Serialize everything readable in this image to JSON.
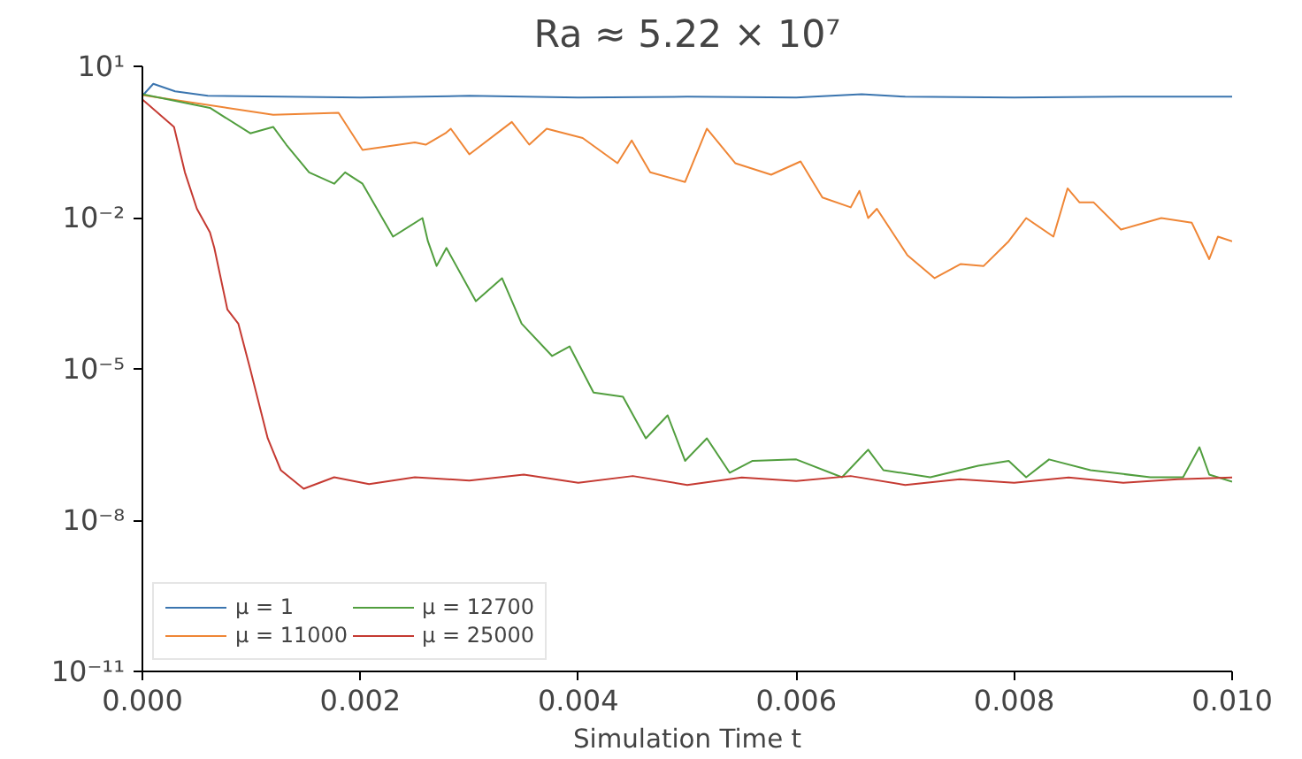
{
  "chart_data": {
    "type": "line",
    "title": "Ra ≈ 5.22 × 10⁷",
    "xlabel": "Simulation Time t",
    "xlim": [
      0,
      0.01
    ],
    "ylim": [
      1e-11,
      10
    ],
    "log": "y",
    "grid": false,
    "legend": "bottom left",
    "marker": "none",
    "line_style": "solid",
    "xticks": [
      {
        "value": 0,
        "label": "0.000"
      },
      {
        "value": 0.002,
        "label": "0.002"
      },
      {
        "value": 0.004,
        "label": "0.004"
      },
      {
        "value": 0.006,
        "label": "0.006"
      },
      {
        "value": 0.008,
        "label": "0.008"
      },
      {
        "value": 0.01,
        "label": "0.010"
      }
    ],
    "yticks": [
      {
        "value": 1e-11,
        "label": "10⁻¹¹"
      },
      {
        "value": 1e-08,
        "label": "10⁻⁸"
      },
      {
        "value": 1e-05,
        "label": "10⁻⁵"
      },
      {
        "value": 0.01,
        "label": "10⁻²"
      },
      {
        "value": 10,
        "label": "10¹"
      }
    ],
    "series": [
      {
        "name": "μ = 1",
        "color": "#3b75af",
        "x": [
          0,
          0.0001,
          0.0003,
          0.0006,
          0.002,
          0.003,
          0.004,
          0.005,
          0.006,
          0.0066,
          0.007,
          0.008,
          0.009,
          0.01
        ],
        "values": [
          2.6,
          4.5,
          3.2,
          2.6,
          2.4,
          2.6,
          2.4,
          2.5,
          2.4,
          2.8,
          2.5,
          2.4,
          2.5,
          2.5
        ]
      },
      {
        "name": "μ = 11000",
        "color": "#ef8636",
        "x": [
          0,
          0.00078,
          0.0012,
          0.0018,
          0.00202,
          0.0025,
          0.0026,
          0.00278,
          0.00283,
          0.003,
          0.00339,
          0.00355,
          0.00371,
          0.00404,
          0.00436,
          0.00449,
          0.00466,
          0.00498,
          0.00518,
          0.00544,
          0.00577,
          0.00604,
          0.00624,
          0.0065,
          0.00658,
          0.00666,
          0.00674,
          0.00702,
          0.00727,
          0.00751,
          0.00772,
          0.00795,
          0.00811,
          0.00836,
          0.00849,
          0.0086,
          0.00873,
          0.00898,
          0.00935,
          0.00963,
          0.00979,
          0.00987,
          0.01
        ],
        "values": [
          2.7,
          1.5,
          1.1,
          1.2,
          0.22,
          0.31,
          0.28,
          0.47,
          0.58,
          0.18,
          0.79,
          0.28,
          0.58,
          0.38,
          0.12,
          0.34,
          0.079,
          0.051,
          0.58,
          0.12,
          0.071,
          0.13,
          0.025,
          0.016,
          0.034,
          0.0098,
          0.015,
          0.0018,
          0.00063,
          0.0012,
          0.0011,
          0.0034,
          0.0098,
          0.0042,
          0.038,
          0.02,
          0.02,
          0.0058,
          0.0098,
          0.0079,
          0.0015,
          0.0042,
          0.0034
        ]
      },
      {
        "name": "μ = 12700",
        "color": "#519e3e",
        "x": [
          0,
          0.00062,
          0.00099,
          0.0012,
          0.00132,
          0.00153,
          0.00176,
          0.00186,
          0.00202,
          0.0023,
          0.00257,
          0.00262,
          0.0027,
          0.00279,
          0.00306,
          0.0033,
          0.00348,
          0.00376,
          0.00392,
          0.00414,
          0.00441,
          0.00462,
          0.00482,
          0.00498,
          0.00518,
          0.00539,
          0.0056,
          0.006,
          0.00642,
          0.00666,
          0.0068,
          0.00723,
          0.00767,
          0.00795,
          0.00811,
          0.00832,
          0.0087,
          0.00925,
          0.00955,
          0.0097,
          0.00979,
          0.01
        ],
        "values": [
          2.8,
          1.5,
          0.47,
          0.63,
          0.28,
          0.079,
          0.047,
          0.079,
          0.047,
          0.0042,
          0.0098,
          0.0034,
          0.0011,
          0.0025,
          0.00022,
          0.00063,
          7.9e-05,
          1.8e-05,
          2.8e-05,
          3.4e-06,
          2.8e-06,
          4.2e-07,
          1.2e-06,
          1.5e-07,
          4.2e-07,
          8.7e-08,
          1.5e-07,
          1.6e-07,
          7.1e-08,
          2.5e-07,
          9.8e-08,
          7.1e-08,
          1.2e-07,
          1.5e-07,
          7.1e-08,
          1.6e-07,
          9.8e-08,
          7.1e-08,
          7.1e-08,
          2.8e-07,
          8e-08,
          5.8e-08
        ]
      },
      {
        "name": "μ = 25000",
        "color": "#c53a32",
        "x": [
          0,
          0.00029,
          0.00039,
          0.0005,
          0.00062,
          0.00066,
          0.00078,
          0.00088,
          0.00099,
          0.00115,
          0.00127,
          0.00148,
          0.00176,
          0.00208,
          0.0025,
          0.003,
          0.0035,
          0.004,
          0.0045,
          0.005,
          0.0055,
          0.006,
          0.0065,
          0.007,
          0.0075,
          0.008,
          0.0085,
          0.009,
          0.0095,
          0.01
        ],
        "values": [
          2.2,
          0.63,
          0.079,
          0.015,
          0.0051,
          0.0025,
          0.00015,
          7.9e-05,
          9.8e-06,
          4.2e-07,
          9.8e-08,
          4.2e-08,
          7.1e-08,
          5.2e-08,
          7.1e-08,
          6.1e-08,
          8e-08,
          5.5e-08,
          7.5e-08,
          5e-08,
          7e-08,
          6e-08,
          7.5e-08,
          5e-08,
          6.5e-08,
          5.5e-08,
          7e-08,
          5.5e-08,
          6.5e-08,
          7e-08
        ]
      }
    ]
  }
}
